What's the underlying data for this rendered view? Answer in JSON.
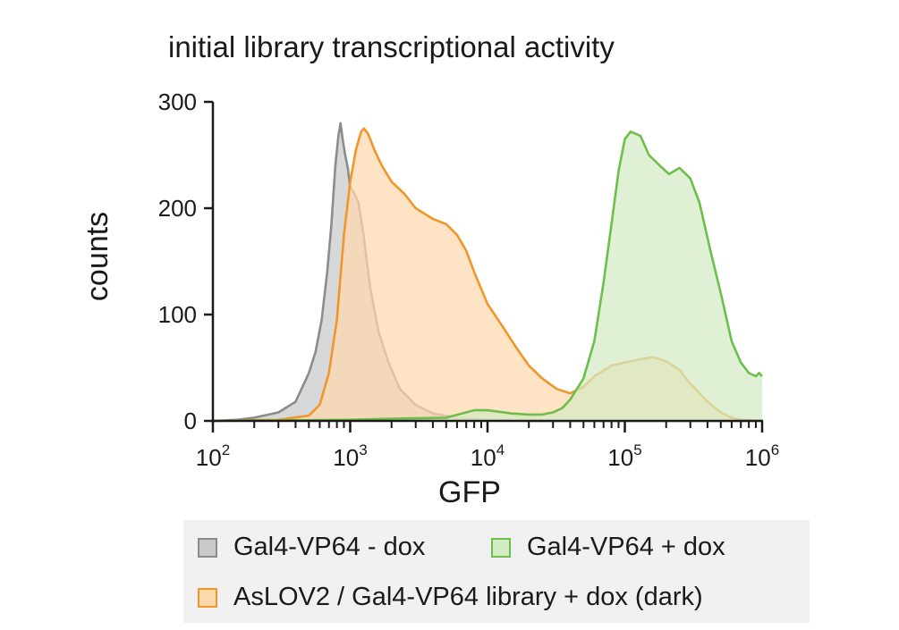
{
  "chart_data": {
    "type": "area",
    "title": "initial library transcriptional activity",
    "xlabel": "GFP",
    "ylabel": "counts",
    "xscale": "log",
    "xlim": [
      100,
      1000000
    ],
    "ylim": [
      0,
      300
    ],
    "x_ticks": [
      {
        "value": 100,
        "base": "10",
        "exp": "2"
      },
      {
        "value": 1000,
        "base": "10",
        "exp": "3"
      },
      {
        "value": 10000,
        "base": "10",
        "exp": "4"
      },
      {
        "value": 100000,
        "base": "10",
        "exp": "5"
      },
      {
        "value": 1000000,
        "base": "10",
        "exp": "6"
      }
    ],
    "y_ticks": [
      0,
      100,
      200,
      300
    ],
    "grid": false,
    "legend_position": "bottom",
    "series": [
      {
        "name": "Gal4-VP64 - dox",
        "color": "#8c8c8c",
        "fill": "#c8c9cb",
        "points": [
          [
            100,
            0
          ],
          [
            150,
            1
          ],
          [
            200,
            3
          ],
          [
            300,
            8
          ],
          [
            400,
            18
          ],
          [
            500,
            45
          ],
          [
            560,
            65
          ],
          [
            620,
            95
          ],
          [
            680,
            140
          ],
          [
            730,
            185
          ],
          [
            780,
            240
          ],
          [
            820,
            268
          ],
          [
            850,
            280
          ],
          [
            880,
            265
          ],
          [
            920,
            250
          ],
          [
            960,
            238
          ],
          [
            1000,
            220
          ],
          [
            1060,
            215
          ],
          [
            1150,
            205
          ],
          [
            1250,
            175
          ],
          [
            1400,
            125
          ],
          [
            1600,
            85
          ],
          [
            1900,
            55
          ],
          [
            2300,
            30
          ],
          [
            3000,
            15
          ],
          [
            4000,
            7
          ],
          [
            6000,
            3
          ],
          [
            10000,
            1
          ],
          [
            20000,
            0
          ],
          [
            1000000,
            0
          ]
        ]
      },
      {
        "name": "AsLOV2 / Gal4-VP64 library + dox (dark)",
        "color": "#f0962a",
        "fill": "#fdd8ad",
        "points": [
          [
            100,
            0
          ],
          [
            300,
            1
          ],
          [
            500,
            5
          ],
          [
            600,
            15
          ],
          [
            700,
            45
          ],
          [
            800,
            95
          ],
          [
            900,
            175
          ],
          [
            1000,
            225
          ],
          [
            1100,
            255
          ],
          [
            1200,
            272
          ],
          [
            1260,
            275
          ],
          [
            1350,
            270
          ],
          [
            1500,
            255
          ],
          [
            1700,
            240
          ],
          [
            2000,
            225
          ],
          [
            2500,
            213
          ],
          [
            3000,
            200
          ],
          [
            4000,
            190
          ],
          [
            5000,
            185
          ],
          [
            6000,
            175
          ],
          [
            7000,
            160
          ],
          [
            8000,
            140
          ],
          [
            10000,
            110
          ],
          [
            13000,
            88
          ],
          [
            16000,
            70
          ],
          [
            20000,
            52
          ],
          [
            25000,
            40
          ],
          [
            32000,
            30
          ],
          [
            40000,
            26
          ],
          [
            50000,
            32
          ],
          [
            60000,
            42
          ],
          [
            80000,
            52
          ],
          [
            100000,
            55
          ],
          [
            130000,
            58
          ],
          [
            160000,
            60
          ],
          [
            200000,
            56
          ],
          [
            250000,
            48
          ],
          [
            300000,
            35
          ],
          [
            400000,
            18
          ],
          [
            500000,
            8
          ],
          [
            600000,
            3
          ],
          [
            700000,
            1
          ],
          [
            1000000,
            0
          ]
        ]
      },
      {
        "name": "Gal4-VP64 + dox",
        "color": "#6cbf4a",
        "fill": "#d4eac4",
        "points": [
          [
            100,
            0
          ],
          [
            1000,
            1
          ],
          [
            2000,
            2
          ],
          [
            5000,
            3
          ],
          [
            8000,
            10
          ],
          [
            10000,
            10
          ],
          [
            15000,
            7
          ],
          [
            20000,
            6
          ],
          [
            25000,
            6
          ],
          [
            30000,
            8
          ],
          [
            35000,
            12
          ],
          [
            40000,
            20
          ],
          [
            50000,
            40
          ],
          [
            60000,
            75
          ],
          [
            70000,
            130
          ],
          [
            80000,
            185
          ],
          [
            90000,
            235
          ],
          [
            100000,
            265
          ],
          [
            110000,
            272
          ],
          [
            130000,
            268
          ],
          [
            150000,
            250
          ],
          [
            180000,
            240
          ],
          [
            210000,
            232
          ],
          [
            250000,
            238
          ],
          [
            300000,
            228
          ],
          [
            350000,
            205
          ],
          [
            420000,
            160
          ],
          [
            500000,
            120
          ],
          [
            600000,
            75
          ],
          [
            700000,
            55
          ],
          [
            800000,
            45
          ],
          [
            900000,
            42
          ],
          [
            950000,
            45
          ],
          [
            1000000,
            42
          ]
        ]
      }
    ]
  },
  "legend": {
    "items": [
      {
        "label": "Gal4-VP64 - dox",
        "color": "#8c8c8c",
        "fill": "#c8c9cb"
      },
      {
        "label": "Gal4-VP64 + dox",
        "color": "#6cbf4a",
        "fill": "#d4eac4"
      },
      {
        "label": "AsLOV2 / Gal4-VP64 library + dox (dark)",
        "color": "#f0962a",
        "fill": "#fdd8ad"
      }
    ]
  }
}
